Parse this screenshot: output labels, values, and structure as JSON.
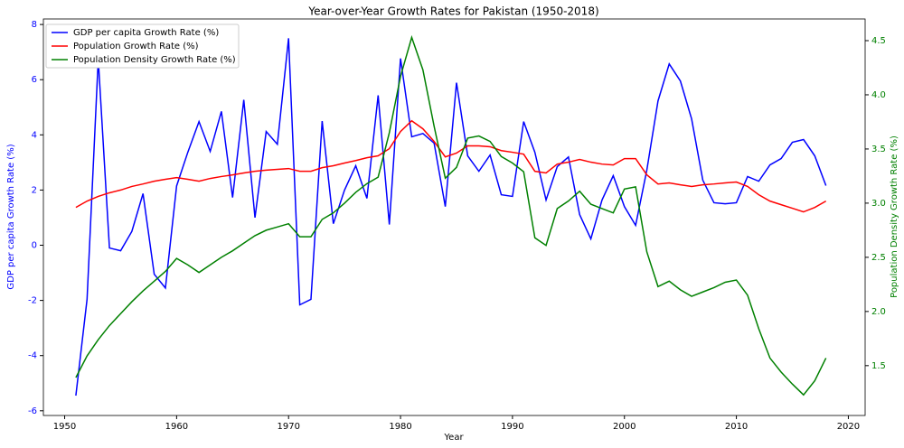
{
  "chart_data": {
    "type": "line",
    "title": "Year-over-Year Growth Rates for Pakistan (1950-2018)",
    "xlabel": "Year",
    "ylabel": "GDP per capita Growth Rate (%)",
    "y2label": "Population Density Growth Rate (%)",
    "ylabel_color": "#0000ff",
    "y2label_color": "#008000",
    "legend": "upper left",
    "x": [
      1951,
      1952,
      1953,
      1954,
      1955,
      1956,
      1957,
      1958,
      1959,
      1960,
      1961,
      1962,
      1963,
      1964,
      1965,
      1966,
      1967,
      1968,
      1969,
      1970,
      1971,
      1972,
      1973,
      1974,
      1975,
      1976,
      1977,
      1978,
      1979,
      1980,
      1981,
      1982,
      1983,
      1984,
      1985,
      1986,
      1987,
      1988,
      1989,
      1990,
      1991,
      1992,
      1993,
      1994,
      1995,
      1996,
      1997,
      1998,
      1999,
      2000,
      2001,
      2002,
      2003,
      2004,
      2005,
      2006,
      2007,
      2008,
      2009,
      2010,
      2011,
      2012,
      2013,
      2014,
      2015,
      2016,
      2017,
      2018
    ],
    "series": [
      {
        "name": "GDP per capita Growth Rate (%)",
        "color": "#0000ff",
        "values": [
          -5.45,
          -1.96,
          6.75,
          -0.1,
          -0.2,
          0.5,
          1.87,
          -1.05,
          -1.55,
          2.15,
          3.37,
          4.48,
          3.4,
          4.85,
          1.73,
          5.27,
          1.0,
          4.12,
          3.66,
          7.5,
          -2.16,
          -1.96,
          4.5,
          0.78,
          2.0,
          2.88,
          1.7,
          5.43,
          0.75,
          6.77,
          3.93,
          4.05,
          3.7,
          1.4,
          5.89,
          3.24,
          2.68,
          3.27,
          1.83,
          1.77,
          4.48,
          3.37,
          1.64,
          2.85,
          3.2,
          1.11,
          0.23,
          1.64,
          2.52,
          1.4,
          0.72,
          2.72,
          5.23,
          6.57,
          5.95,
          4.58,
          2.36,
          1.54,
          1.5,
          1.54,
          2.49,
          2.32,
          2.91,
          3.14,
          3.73,
          3.83,
          3.24,
          2.16
        ]
      },
      {
        "name": "Population Growth Rate (%)",
        "color": "#ff0000",
        "values": [
          1.37,
          1.6,
          1.77,
          1.9,
          2.0,
          2.13,
          2.22,
          2.32,
          2.39,
          2.45,
          2.39,
          2.32,
          2.42,
          2.49,
          2.55,
          2.62,
          2.68,
          2.72,
          2.75,
          2.78,
          2.68,
          2.68,
          2.81,
          2.88,
          2.98,
          3.07,
          3.17,
          3.24,
          3.5,
          4.12,
          4.51,
          4.22,
          3.76,
          3.2,
          3.34,
          3.6,
          3.6,
          3.57,
          3.43,
          3.37,
          3.3,
          2.68,
          2.62,
          2.94,
          3.01,
          3.11,
          3.01,
          2.94,
          2.91,
          3.14,
          3.14,
          2.55,
          2.22,
          2.26,
          2.19,
          2.13,
          2.19,
          2.22,
          2.26,
          2.29,
          2.13,
          1.83,
          1.6,
          1.47,
          1.34,
          1.21,
          1.37,
          1.6
        ]
      },
      {
        "name": "Population Density Growth Rate (%)",
        "color": "#008000",
        "axis": "y2",
        "values": [
          1.39,
          1.59,
          1.74,
          1.87,
          1.98,
          2.09,
          2.19,
          2.28,
          2.37,
          2.49,
          2.43,
          2.36,
          2.43,
          2.5,
          2.56,
          2.63,
          2.7,
          2.75,
          2.78,
          2.81,
          2.69,
          2.69,
          2.85,
          2.91,
          3.0,
          3.1,
          3.18,
          3.24,
          3.65,
          4.17,
          4.53,
          4.23,
          3.71,
          3.23,
          3.33,
          3.6,
          3.62,
          3.57,
          3.43,
          3.37,
          3.29,
          2.68,
          2.61,
          2.95,
          3.02,
          3.11,
          2.99,
          2.95,
          2.91,
          3.13,
          3.15,
          2.55,
          2.23,
          2.28,
          2.2,
          2.14,
          2.18,
          2.22,
          2.27,
          2.29,
          2.15,
          1.84,
          1.57,
          1.44,
          1.33,
          1.23,
          1.36,
          1.57
        ]
      }
    ],
    "xlim": [
      1948.1,
      2021.5
    ],
    "ylim": [
      -6.17,
      8.2
    ],
    "y2lim": [
      1.04,
      4.7
    ],
    "xticks": [
      1950,
      1960,
      1970,
      1980,
      1990,
      2000,
      2010,
      2020
    ],
    "yticks": [
      -6,
      -4,
      -2,
      0,
      2,
      4,
      6,
      8
    ],
    "y2ticks": [
      1.5,
      {
        "value": 2,
        "label": "2.0"
      },
      2.5,
      {
        "value": 3,
        "label": "3.0"
      },
      3.5,
      {
        "value": 4,
        "label": "4.0"
      },
      4.5
    ]
  }
}
